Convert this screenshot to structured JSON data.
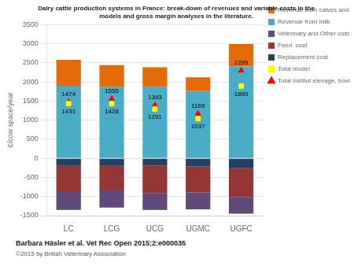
{
  "chart_data": {
    "type": "bar",
    "title": [
      "Dairy cattle production systems in France: break-down of revenues and variable costs in the",
      "models and gross margin analyses in the literature."
    ],
    "ylabel": "£/cow space/year",
    "categories": [
      "LC",
      "LCG",
      "UCG",
      "UGMC",
      "UGFC"
    ],
    "stacked": true,
    "grid": "y",
    "legend": "right",
    "ylim": [
      -1500,
      3500
    ],
    "yticks": [
      -1500,
      -1000,
      -500,
      0,
      500,
      1000,
      1500,
      2000,
      2500,
      3000,
      3500
    ],
    "series": [
      {
        "name": "Revenue from calves and cows culled",
        "type": "bar",
        "color": "#e36c09",
        "values": [
          680,
          570,
          510,
          360,
          590
        ]
      },
      {
        "name": "Revenue from milk",
        "type": "bar",
        "color": "#4bacc6",
        "values": [
          1900,
          1870,
          1870,
          1760,
          2400
        ]
      },
      {
        "name": "Veterinary and Other cost",
        "type": "bar",
        "color": "#604a7b",
        "values": [
          -470,
          -450,
          -440,
          -440,
          -440
        ]
      },
      {
        "name": "Feed  cost",
        "type": "bar",
        "color": "#943634",
        "values": [
          -680,
          -640,
          -720,
          -680,
          -750
        ]
      },
      {
        "name": "Replacement cost",
        "type": "bar",
        "color": "#243f60",
        "values": [
          -200,
          -200,
          -190,
          -215,
          -260
        ]
      },
      {
        "name": "Total model",
        "type": "scatter",
        "marker": "square",
        "color": "#ffff00",
        "data_labels": true,
        "values": [
          1431,
          1428,
          1291,
          1037,
          1890
        ]
      },
      {
        "name": "Total institut elevage, bovin lait",
        "type": "scatter",
        "marker": "triangle",
        "color": "#ff0000",
        "data_labels": true,
        "values": [
          1474,
          1555,
          1393,
          1169,
          2295
        ]
      }
    ],
    "annotations": [
      "Barbara Häsler et al. Vet Rec Open 2015;2:e000035",
      "©2015 by British Veterinary Association"
    ]
  }
}
